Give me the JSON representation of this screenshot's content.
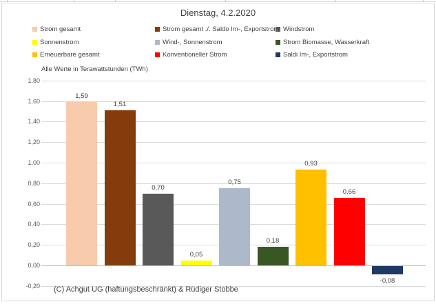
{
  "chart": {
    "title": "Dienstag, 4.2.2020",
    "axis_note": "Alle Werte in Terawattstunden (TWh)",
    "footer": "(C) Achgut UG (haftungsbeschränkt) & Rüdiger Stobbe"
  },
  "chart_data": {
    "type": "bar",
    "title": "Dienstag, 4.2.2020",
    "unit_note": "Alle Werte in Terawattstunden (TWh)",
    "ylim": [
      -0.2,
      1.8
    ],
    "grid": true,
    "legend_position": "top",
    "y_ticks": [
      {
        "label": "1,80",
        "value": 1.8
      },
      {
        "label": "1,60",
        "value": 1.6
      },
      {
        "label": "1,40",
        "value": 1.4
      },
      {
        "label": "1,20",
        "value": 1.2
      },
      {
        "label": "1,00",
        "value": 1.0
      },
      {
        "label": "0,80",
        "value": 0.8
      },
      {
        "label": "0,60",
        "value": 0.6
      },
      {
        "label": "0,40",
        "value": 0.4
      },
      {
        "label": "0,20",
        "value": 0.2
      },
      {
        "label": "0,00",
        "value": 0.0
      },
      {
        "label": "-0,20",
        "value": -0.2
      }
    ],
    "points": [
      {
        "name": "Strom gesamt",
        "value": 1.59,
        "label": "1,59",
        "color": "#F8CBAD"
      },
      {
        "name": "Strom gesamt ./. Saldo Im-, Exportstrom",
        "value": 1.51,
        "label": "1,51",
        "color": "#843C0C"
      },
      {
        "name": "Windstrom",
        "value": 0.7,
        "label": "0,70",
        "color": "#595959"
      },
      {
        "name": "Sonnenstrom",
        "value": 0.05,
        "label": "0,05",
        "color": "#FFFF00"
      },
      {
        "name": "Wind-, Sonnenstrom",
        "value": 0.75,
        "label": "0,75",
        "color": "#ADB9CA"
      },
      {
        "name": "Strom Biomasse, Wasserkraft",
        "value": 0.18,
        "label": "0,18",
        "color": "#385723"
      },
      {
        "name": "Erneuerbare gesamt",
        "value": 0.93,
        "label": "0,93",
        "color": "#FFC000"
      },
      {
        "name": "Konventioneller Strom",
        "value": 0.66,
        "label": "0,66",
        "color": "#FF0000"
      },
      {
        "name": "Saldi Im-, Exportstrom",
        "value": -0.08,
        "label": "-0,08",
        "color": "#1F3864"
      }
    ],
    "footer": "(C) Achgut UG (haftungsbeschränkt) & Rüdiger Stobbe"
  }
}
